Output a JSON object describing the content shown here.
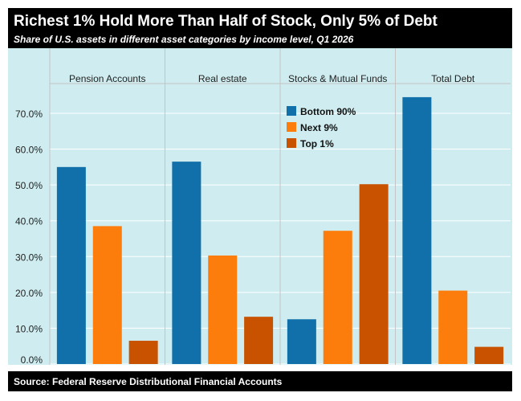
{
  "header": {
    "title": "Richest 1% Hold More Than Half of Stock, Only 5% of Debt",
    "subtitle": "Share of U.S. assets in different asset categories by income level, Q1 2026"
  },
  "footer": {
    "source": "Source: Federal Reserve Distributional Financial Accounts"
  },
  "chart_data": {
    "type": "bar",
    "categories": [
      "Pension Accounts",
      "Real estate",
      "Stocks & Mutual Funds",
      "Total Debt"
    ],
    "series": [
      {
        "name": "Bottom 90%",
        "color": "#1170aa",
        "values": [
          55.0,
          56.5,
          12.5,
          74.5
        ]
      },
      {
        "name": "Next 9%",
        "color": "#fc7d0b",
        "values": [
          38.5,
          30.3,
          37.2,
          20.5
        ]
      },
      {
        "name": "Top 1%",
        "color": "#c85200",
        "values": [
          6.5,
          13.2,
          50.2,
          4.8
        ]
      }
    ],
    "ylim": [
      0,
      80
    ],
    "yticks": [
      0,
      10,
      20,
      30,
      40,
      50,
      60,
      70
    ],
    "ytick_labels": [
      "0.0%",
      "10.0%",
      "20.0%",
      "30.0%",
      "40.0%",
      "50.0%",
      "60.0%",
      "70.0%"
    ],
    "grid": true,
    "legend_placement": "top, in third panel",
    "background_color": "#cfedf0"
  }
}
